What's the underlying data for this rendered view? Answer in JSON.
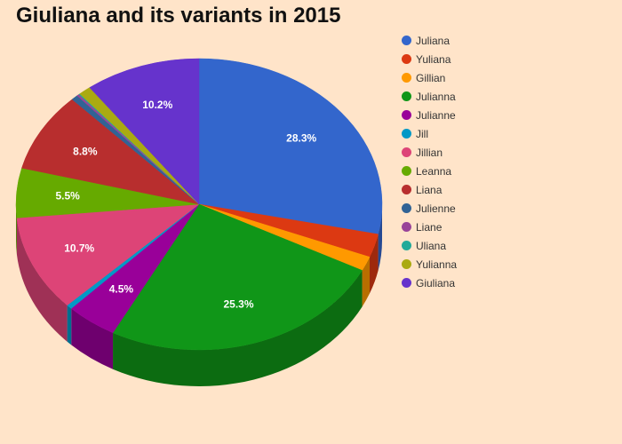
{
  "chart_data": {
    "type": "pie",
    "title": "Giuliana and its variants in 2015",
    "series": [
      {
        "name": "Juliana",
        "value": 28.3,
        "label": "28.3%",
        "color": "#3366cc"
      },
      {
        "name": "Yuliana",
        "value": 2.6,
        "label": "",
        "color": "#dc3912"
      },
      {
        "name": "Gillian",
        "value": 1.6,
        "label": "",
        "color": "#ff9900"
      },
      {
        "name": "Julianna",
        "value": 25.3,
        "label": "25.3%",
        "color": "#109618"
      },
      {
        "name": "Julianne",
        "value": 4.5,
        "label": "4.5%",
        "color": "#990099"
      },
      {
        "name": "Jill",
        "value": 0.5,
        "label": "",
        "color": "#0099c6"
      },
      {
        "name": "Jillian",
        "value": 10.7,
        "label": "10.7%",
        "color": "#dd4477"
      },
      {
        "name": "Leanna",
        "value": 5.5,
        "label": "5.5%",
        "color": "#66aa00"
      },
      {
        "name": "Liana",
        "value": 8.8,
        "label": "8.8%",
        "color": "#b82e2e"
      },
      {
        "name": "Julienne",
        "value": 0.6,
        "label": "",
        "color": "#316395"
      },
      {
        "name": "Liane",
        "value": 0.2,
        "label": "",
        "color": "#994499"
      },
      {
        "name": "Uliana",
        "value": 0.1,
        "label": "",
        "color": "#22aa99"
      },
      {
        "name": "Yulianna",
        "value": 1.1,
        "label": "",
        "color": "#aaaa11"
      },
      {
        "name": "Giuliana",
        "value": 10.2,
        "label": "10.2%",
        "color": "#6633cc"
      }
    ],
    "legend_position": "right"
  }
}
